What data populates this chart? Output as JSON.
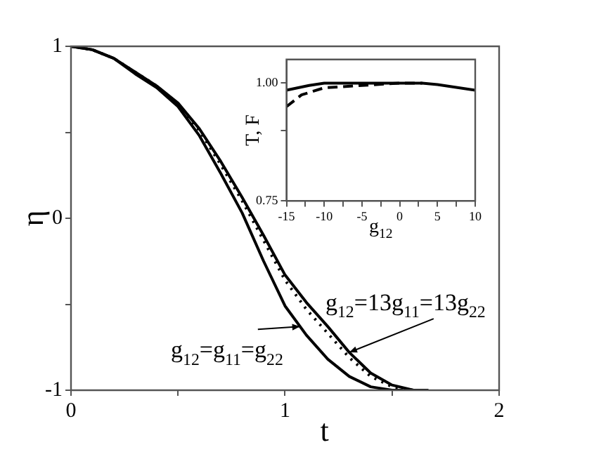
{
  "chart_data": [
    {
      "type": "line",
      "xlabel": "t",
      "ylabel": "η",
      "xlim": [
        0,
        2
      ],
      "ylim": [
        -1,
        1
      ],
      "xticks": [
        0,
        {
          "value": 0.5,
          "label": null
        },
        1,
        {
          "value": 1.5,
          "label": null
        },
        2
      ],
      "yticks": [
        -1,
        {
          "value": -0.5,
          "label": null
        },
        0,
        {
          "value": 0.5,
          "label": null
        },
        1
      ],
      "grid": false,
      "legend": false,
      "marker": "none",
      "series": [
        {
          "color": "#000000",
          "line_style": "solid",
          "x": [
            0,
            0.1,
            0.2,
            0.3,
            0.4,
            0.5,
            0.6,
            0.7,
            0.8,
            0.9,
            1.0,
            1.1,
            1.2,
            1.3,
            1.4,
            1.5,
            1.55
          ],
          "values": [
            1,
            0.98,
            0.93,
            0.84,
            0.76,
            0.65,
            0.48,
            0.26,
            0.03,
            -0.25,
            -0.51,
            -0.68,
            -0.82,
            -0.92,
            -0.98,
            -1,
            -1
          ]
        },
        {
          "color": "#000000",
          "line_style": "solid",
          "x": [
            0,
            0.1,
            0.2,
            0.3,
            0.4,
            0.5,
            0.6,
            0.7,
            0.8,
            0.9,
            1.0,
            1.1,
            1.2,
            1.3,
            1.4,
            1.5,
            1.6,
            1.67
          ],
          "values": [
            1,
            0.98,
            0.93,
            0.85,
            0.77,
            0.67,
            0.52,
            0.33,
            0.12,
            -0.1,
            -0.33,
            -0.49,
            -0.63,
            -0.78,
            -0.9,
            -0.97,
            -1,
            -1
          ]
        },
        {
          "color": "#000000",
          "line_style": "dotted",
          "x": [
            0,
            0.1,
            0.2,
            0.3,
            0.4,
            0.5,
            0.6,
            0.7,
            0.8,
            0.9,
            1.0,
            1.1,
            1.2,
            1.3,
            1.4,
            1.5,
            1.6,
            1.65
          ],
          "values": [
            1,
            0.98,
            0.93,
            0.85,
            0.77,
            0.66,
            0.51,
            0.31,
            0.1,
            -0.13,
            -0.36,
            -0.53,
            -0.67,
            -0.81,
            -0.92,
            -0.98,
            -1,
            -1
          ]
        }
      ],
      "annotations": [
        {
          "text": "g$_{12}$=g$_{11}$=g$_{22}$",
          "x": 1.07,
          "y": -0.63
        },
        {
          "text": "g$_{12}$=13g$_{11}$=13g$_{22}$",
          "x": 1.3,
          "y": -0.78
        }
      ]
    },
    {
      "type": "line",
      "xlabel": "g$_{12}$",
      "ylabel": "T, F",
      "xlim": [
        -15,
        10
      ],
      "ylim": [
        0.75,
        1.05
      ],
      "xticks": [
        -15,
        {
          "value": -12.5,
          "label": null
        },
        -10,
        {
          "value": -7.5,
          "label": null
        },
        -5,
        {
          "value": -2.5,
          "label": null
        },
        0,
        {
          "value": 2.5,
          "label": null
        },
        5,
        {
          "value": 7.5,
          "label": null
        },
        10
      ],
      "yticks": [
        {
          "value": 0.75,
          "label": "0.75"
        },
        {
          "value": 0.9,
          "label": null
        },
        {
          "value": 1.0,
          "label": "1.00"
        }
      ],
      "grid": false,
      "legend": false,
      "marker": "none",
      "series": [
        {
          "color": "#000000",
          "line_style": "solid",
          "x": [
            -15,
            -12,
            -10,
            -5,
            0,
            3,
            5,
            10
          ],
          "values": [
            0.985,
            0.995,
            1.0,
            1.0,
            1.0,
            1.0,
            0.997,
            0.985
          ]
        },
        {
          "color": "#000000",
          "line_style": "dashed",
          "x": [
            -15,
            -13,
            -10,
            -5,
            0,
            3
          ],
          "values": [
            0.95,
            0.975,
            0.99,
            0.995,
            1.0,
            1.0
          ]
        }
      ]
    }
  ]
}
